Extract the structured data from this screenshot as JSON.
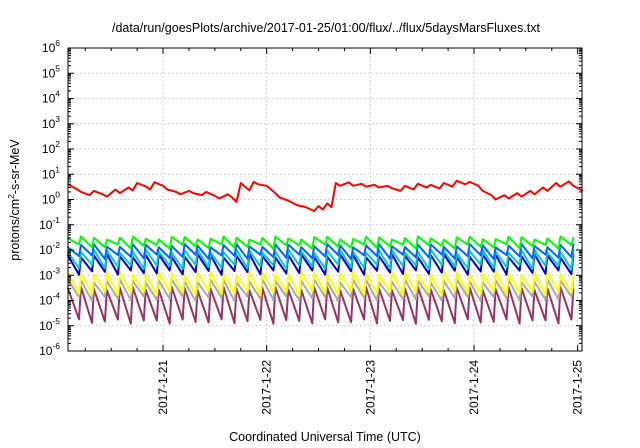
{
  "chart_data": {
    "type": "line",
    "title": "/data/run/goesPlots/archive/2017-01-25/01:00/flux/../flux/5daysMarsFluxes.txt",
    "xlabel": "Coordinated Universal Time (UTC)",
    "ylabel_parts": [
      "protons/cm",
      "2",
      "-s-sr-MeV"
    ],
    "yscale": "log",
    "ylim": [
      1e-06,
      1000000.0
    ],
    "xlim": [
      "2017-01-20T02:00",
      "2017-01-25T01:00"
    ],
    "grid": true,
    "legend": "none",
    "y_ticks": [
      {
        "value": 1e-06,
        "base": "10",
        "exp": "-6"
      },
      {
        "value": 1e-05,
        "base": "10",
        "exp": "-5"
      },
      {
        "value": 0.0001,
        "base": "10",
        "exp": "-4"
      },
      {
        "value": 0.001,
        "base": "10",
        "exp": "-3"
      },
      {
        "value": 0.01,
        "base": "10",
        "exp": "-2"
      },
      {
        "value": 0.1,
        "base": "10",
        "exp": "-1"
      },
      {
        "value": 1,
        "base": "10",
        "exp": "0"
      },
      {
        "value": 10,
        "base": "10",
        "exp": "1"
      },
      {
        "value": 100,
        "base": "10",
        "exp": "2"
      },
      {
        "value": 1000,
        "base": "10",
        "exp": "3"
      },
      {
        "value": 10000,
        "base": "10",
        "exp": "4"
      },
      {
        "value": 100000,
        "base": "10",
        "exp": "5"
      },
      {
        "value": 1000000,
        "base": "10",
        "exp": "6"
      }
    ],
    "x_ticks": [
      {
        "value": "2017-01-21T00:00",
        "label": "2017-1-21"
      },
      {
        "value": "2017-01-22T00:00",
        "label": "2017-1-22"
      },
      {
        "value": "2017-01-23T00:00",
        "label": "2017-1-23"
      },
      {
        "value": "2017-01-24T00:00",
        "label": "2017-1-24"
      },
      {
        "value": "2017-01-25T00:00",
        "label": "2017-1-25"
      }
    ],
    "series": [
      {
        "color": "#ff0000",
        "x": [
          "2017-01-20T02:00",
          "2017-01-20T04:00",
          "2017-01-20T05:00",
          "2017-01-20T07:00",
          "2017-01-20T08:00",
          "2017-01-20T10:00",
          "2017-01-20T11:00",
          "2017-01-20T13:00",
          "2017-01-20T14:00",
          "2017-01-20T16:00",
          "2017-01-20T17:00",
          "2017-01-20T18:00",
          "2017-01-20T20:00",
          "2017-01-20T21:00",
          "2017-01-20T22:00",
          "2017-01-21T00:00",
          "2017-01-21T01:00",
          "2017-01-21T03:00",
          "2017-01-21T04:00",
          "2017-01-21T06:00",
          "2017-01-21T07:00",
          "2017-01-21T09:00",
          "2017-01-21T10:00",
          "2017-01-21T12:00",
          "2017-01-21T13:00",
          "2017-01-21T15:00",
          "2017-01-21T16:00",
          "2017-01-21T17:00",
          "2017-01-21T18:00",
          "2017-01-21T19:00",
          "2017-01-21T20:00",
          "2017-01-21T21:00",
          "2017-01-21T22:00",
          "2017-01-22T00:00",
          "2017-01-22T01:00",
          "2017-01-22T02:00",
          "2017-01-22T03:00",
          "2017-01-22T05:00",
          "2017-01-22T07:00",
          "2017-01-22T09:00",
          "2017-01-22T11:00",
          "2017-01-22T12:00",
          "2017-01-22T13:00",
          "2017-01-22T14:00",
          "2017-01-22T15:00",
          "2017-01-22T16:00",
          "2017-01-22T17:00",
          "2017-01-22T19:00",
          "2017-01-22T20:00",
          "2017-01-22T22:00",
          "2017-01-22T23:00",
          "2017-01-23T01:00",
          "2017-01-23T02:00",
          "2017-01-23T04:00",
          "2017-01-23T05:00",
          "2017-01-23T07:00",
          "2017-01-23T08:00",
          "2017-01-23T10:00",
          "2017-01-23T11:00",
          "2017-01-23T13:00",
          "2017-01-23T14:00",
          "2017-01-23T16:00",
          "2017-01-23T17:00",
          "2017-01-23T19:00",
          "2017-01-23T20:00",
          "2017-01-23T22:00",
          "2017-01-23T23:00",
          "2017-01-24T01:00",
          "2017-01-24T02:00",
          "2017-01-24T04:00",
          "2017-01-24T05:00",
          "2017-01-24T07:00",
          "2017-01-24T08:00",
          "2017-01-24T10:00",
          "2017-01-24T11:00",
          "2017-01-24T13:00",
          "2017-01-24T14:00",
          "2017-01-24T16:00",
          "2017-01-24T17:00",
          "2017-01-24T19:00",
          "2017-01-24T20:00",
          "2017-01-24T22:00",
          "2017-01-24T23:00",
          "2017-01-25T01:00"
        ],
        "values": [
          4.0,
          2.6,
          2.0,
          1.5,
          2.2,
          1.6,
          1.3,
          2.5,
          1.8,
          3.0,
          2.3,
          4.5,
          3.3,
          2.5,
          4.8,
          3.5,
          2.5,
          2.0,
          1.6,
          2.2,
          1.8,
          1.5,
          2.0,
          1.4,
          1.1,
          1.6,
          1.2,
          0.8,
          4.5,
          3.2,
          2.3,
          5.0,
          4.0,
          3.5,
          2.5,
          1.8,
          1.2,
          0.9,
          0.6,
          0.5,
          0.35,
          0.55,
          0.4,
          0.7,
          0.5,
          4.5,
          3.5,
          4.8,
          3.5,
          4.2,
          3.2,
          3.8,
          3.0,
          3.5,
          2.8,
          2.2,
          3.5,
          2.5,
          4.2,
          3.0,
          3.8,
          2.7,
          4.5,
          3.2,
          5.5,
          4.0,
          5.0,
          3.5,
          2.2,
          1.5,
          1.0,
          1.5,
          1.1,
          1.8,
          1.3,
          2.2,
          1.6,
          3.0,
          2.2,
          4.5,
          3.2,
          5.2,
          3.5,
          2.3
        ]
      }
    ],
    "cyclic_series": [
      {
        "color": "#00ff00",
        "peak": 0.03,
        "trough": 0.014,
        "period_h": 3,
        "start": "2017-01-20T02:00",
        "end": "2017-01-25T01:00"
      },
      {
        "color": "#0066ff",
        "peak": 0.015,
        "trough": 0.0055,
        "period_h": 3,
        "start": "2017-01-20T02:00",
        "end": "2017-01-25T01:00"
      },
      {
        "color": "#00cccc",
        "peak": 0.009,
        "trough": 0.0022,
        "period_h": 3,
        "start": "2017-01-20T02:00",
        "end": "2017-01-25T01:00"
      },
      {
        "color": "#0000cc",
        "peak": 0.006,
        "trough": 0.0013,
        "period_h": 3,
        "start": "2017-01-20T02:00",
        "end": "2017-01-25T01:00"
      },
      {
        "color": "#ffff00",
        "peak": 0.0012,
        "trough": 0.0002,
        "period_h": 3,
        "start": "2017-01-20T02:00",
        "end": "2017-01-25T01:00"
      },
      {
        "color": "#aaaaaa",
        "peak": 0.0006,
        "trough": 0.00012,
        "period_h": 3,
        "start": "2017-01-20T02:00",
        "end": "2017-01-25T01:00"
      },
      {
        "color": "#993366",
        "peak": 0.0003,
        "trough": 1.5e-05,
        "period_h": 3,
        "start": "2017-01-20T02:00",
        "end": "2017-01-25T01:00"
      }
    ]
  }
}
